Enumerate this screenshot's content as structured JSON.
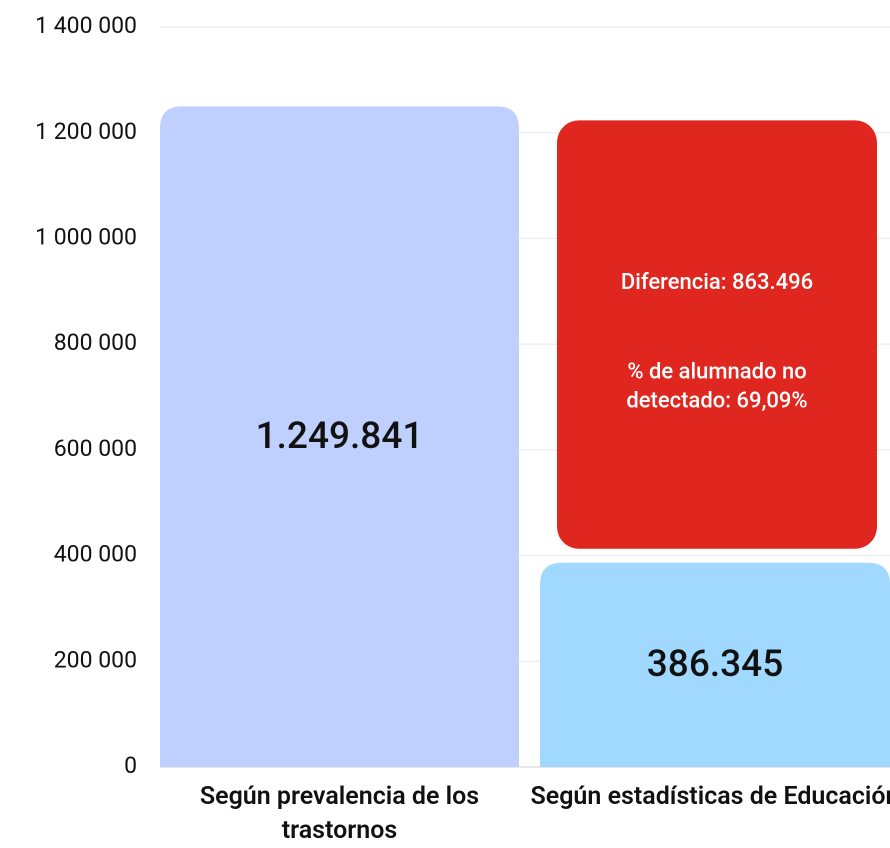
{
  "chart_data": {
    "type": "stacked-bar",
    "categories": [
      "Según prevalencia de los trastornos",
      "Según estadísticas de Educación"
    ],
    "series": [
      {
        "colors": [
          "#c0d0fe",
          "#a0d8fe"
        ],
        "values": [
          1249841,
          386345
        ],
        "value_labels": [
          "1.249.841",
          "386.345"
        ]
      },
      {
        "color": "#e0271f",
        "values": [
          null,
          863496
        ],
        "value_labels": [
          null,
          "Diferencia: 863.496"
        ]
      }
    ],
    "annotation": "% de alumnado no detectado: 69,09%",
    "ylim": [
      0,
      1400000
    ],
    "yticks": [
      0,
      {
        "value": 200000,
        "label": "200 000"
      },
      {
        "value": 400000,
        "label": "400 000"
      },
      {
        "value": 600000,
        "label": "600 000"
      },
      {
        "value": 800000,
        "label": "800 000"
      },
      {
        "value": 1000000,
        "label": "1 000 000"
      },
      {
        "value": 1200000,
        "label": "1 200 000"
      },
      {
        "value": 1400000,
        "label": "1 400 000"
      }
    ],
    "grid": true
  }
}
